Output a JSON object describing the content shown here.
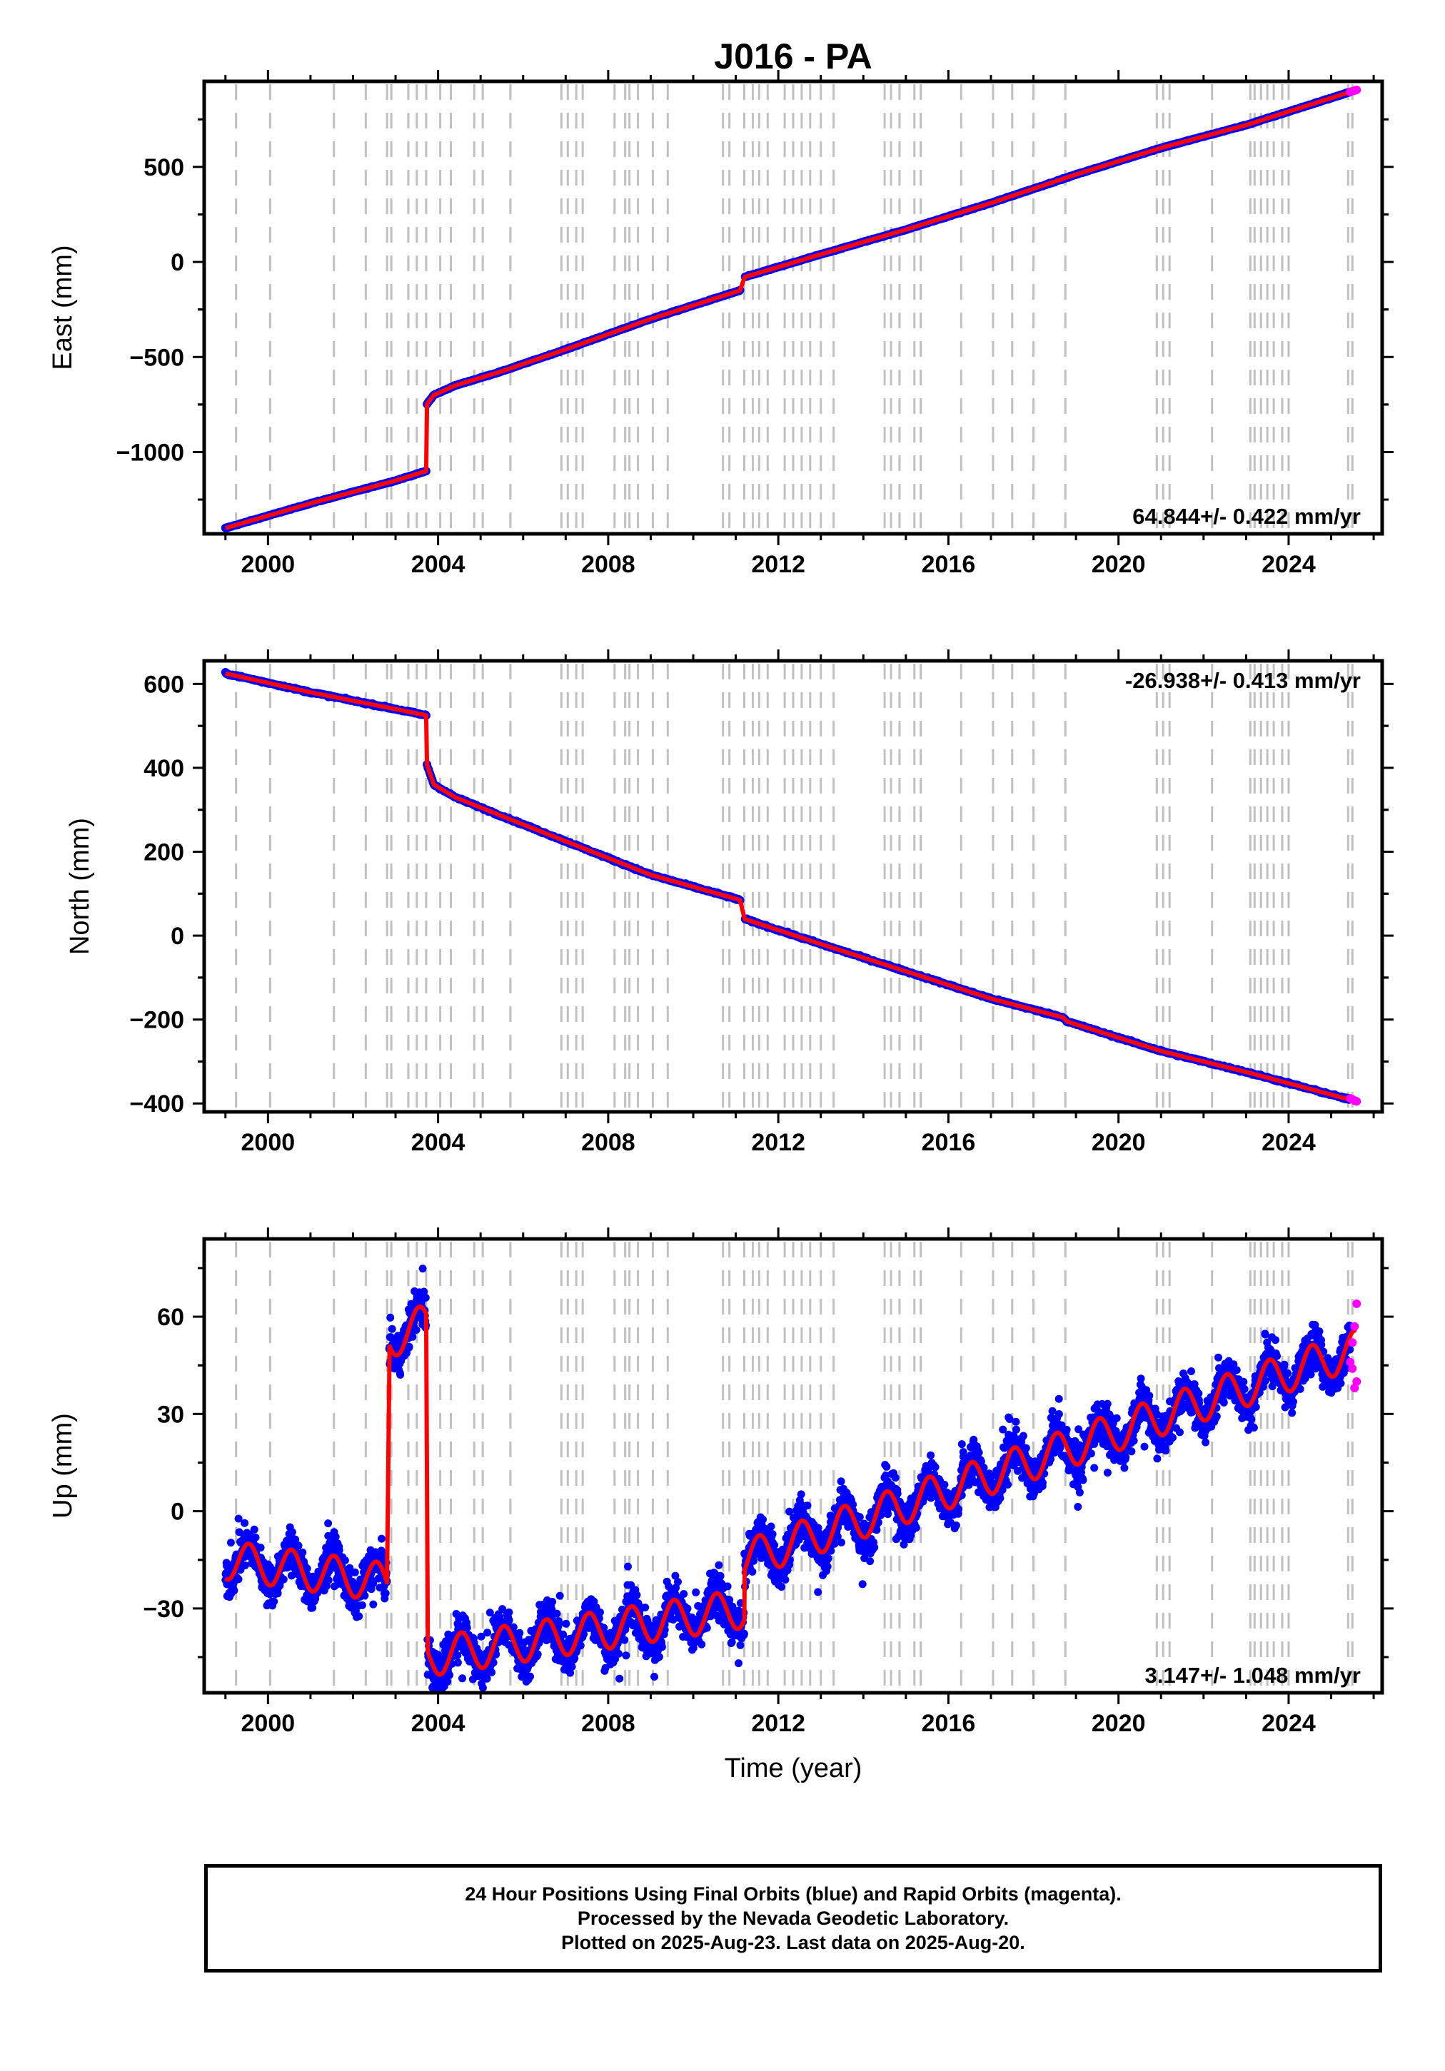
{
  "title": "J016 - PA",
  "caption": {
    "line1": "24 Hour Positions Using Final Orbits (blue) and Rapid Orbits (magenta).",
    "line2": "Processed by the Nevada Geodetic Laboratory.",
    "line3": "Plotted on 2025-Aug-23. Last data on 2025-Aug-20."
  },
  "colors": {
    "final_orbits": "#0000ff",
    "rapid_orbits": "#ff00ff",
    "model_fit": "#ff0000",
    "step_lines": "#c0c0c0"
  },
  "chart_data": [
    {
      "type": "scatter",
      "ylabel": "East (mm)",
      "xlabel": "",
      "xlim": [
        1998.5,
        2026.2
      ],
      "ylim": [
        -1430,
        950
      ],
      "xticks": [
        2000,
        2004,
        2008,
        2012,
        2016,
        2020,
        2024
      ],
      "yticks": [
        -1000,
        -500,
        0,
        500
      ],
      "rate_label": "64.844+/- 0.422 mm/yr",
      "rate_label_position": "bottom-right",
      "series": [
        {
          "x": [
            1999.0,
            2001.0,
            2003.0,
            2003.72
          ],
          "y": [
            -1400,
            -1270,
            -1150,
            -1100
          ]
        },
        {
          "x": [
            2003.73,
            2003.9,
            2004.4,
            2005.5,
            2007.0,
            2009.0,
            2011.1
          ],
          "y": [
            -750,
            -700,
            -650,
            -575,
            -460,
            -300,
            -150
          ]
        },
        {
          "x": [
            2011.2,
            2013.0,
            2015.0,
            2017.0,
            2019.0,
            2021.0,
            2023.0,
            2025.6
          ],
          "y": [
            -80,
            40,
            170,
            310,
            460,
            600,
            720,
            905
          ]
        }
      ],
      "rapid_x": [
        2025.45,
        2025.5,
        2025.55,
        2025.6
      ],
      "rapid_y": [
        895,
        898,
        901,
        905
      ]
    },
    {
      "type": "scatter",
      "ylabel": "North (mm)",
      "xlabel": "",
      "xlim": [
        1998.5,
        2026.2
      ],
      "ylim": [
        -420,
        655
      ],
      "xticks": [
        2000,
        2004,
        2008,
        2012,
        2016,
        2020,
        2024
      ],
      "yticks": [
        -400,
        -200,
        0,
        200,
        400,
        600
      ],
      "rate_label": "-26.938+/- 0.413 mm/yr",
      "rate_label_position": "top-right",
      "series": [
        {
          "x": [
            1999.0,
            2001.0,
            2003.0,
            2003.72
          ],
          "y": [
            625,
            580,
            540,
            525
          ]
        },
        {
          "x": [
            2003.73,
            2003.9,
            2004.4,
            2005.5,
            2007.0,
            2009.0,
            2011.1
          ],
          "y": [
            410,
            360,
            330,
            285,
            225,
            145,
            85
          ]
        },
        {
          "x": [
            2011.2,
            2013.0,
            2015.0,
            2017.0,
            2018.7,
            2018.8,
            2021.0,
            2023.0,
            2025.6
          ],
          "y": [
            40,
            -20,
            -85,
            -150,
            -195,
            -205,
            -275,
            -325,
            -395
          ]
        }
      ],
      "rapid_x": [
        2025.45,
        2025.5,
        2025.55,
        2025.6
      ],
      "rapid_y": [
        -388,
        -390,
        -393,
        -395
      ]
    },
    {
      "type": "scatter",
      "ylabel": "Up (mm)",
      "xlabel": "Time (year)",
      "xlim": [
        1998.5,
        2026.2
      ],
      "ylim": [
        -56,
        84
      ],
      "xticks": [
        2000,
        2004,
        2008,
        2012,
        2016,
        2020,
        2024
      ],
      "yticks": [
        -30,
        0,
        30,
        60
      ],
      "rate_label": "3.147+/- 1.048 mm/yr",
      "rate_label_position": "bottom-right",
      "series": [
        {
          "x": [
            1999.0,
            2002.8
          ],
          "y": [
            -15,
            -22
          ]
        },
        {
          "x": [
            2002.85,
            2003.72
          ],
          "y": [
            53,
            58
          ]
        },
        {
          "x": [
            2003.75,
            2011.2
          ],
          "y": [
            -45,
            -30
          ]
        },
        {
          "x": [
            2011.2,
            2025.6
          ],
          "y": [
            -15,
            50
          ]
        }
      ],
      "seasonal_amplitude_mm": 6,
      "rapid_x": [
        2025.45,
        2025.5,
        2025.55,
        2025.6,
        2025.6,
        2025.55,
        2025.5
      ],
      "rapid_y": [
        46,
        52,
        57,
        64,
        40,
        38,
        44
      ]
    }
  ],
  "step_epochs": [
    1999.25,
    2000.05,
    2001.55,
    2002.3,
    2002.8,
    2002.9,
    2003.3,
    2003.5,
    2003.72,
    2004.05,
    2004.3,
    2004.85,
    2005.05,
    2005.7,
    2006.9,
    2007.05,
    2007.25,
    2007.4,
    2008.15,
    2008.4,
    2008.5,
    2008.7,
    2009.05,
    2009.4,
    2010.7,
    2010.85,
    2011.2,
    2011.4,
    2011.55,
    2011.75,
    2012.15,
    2012.35,
    2012.55,
    2012.75,
    2013.0,
    2013.3,
    2014.5,
    2014.65,
    2014.85,
    2015.2,
    2015.35,
    2016.3,
    2017.05,
    2017.5,
    2018.0,
    2018.75,
    2020.9,
    2021.05,
    2021.2,
    2022.2,
    2023.1,
    2023.2,
    2023.35,
    2023.5,
    2023.65,
    2023.85,
    2024.0,
    2025.4,
    2025.5
  ]
}
